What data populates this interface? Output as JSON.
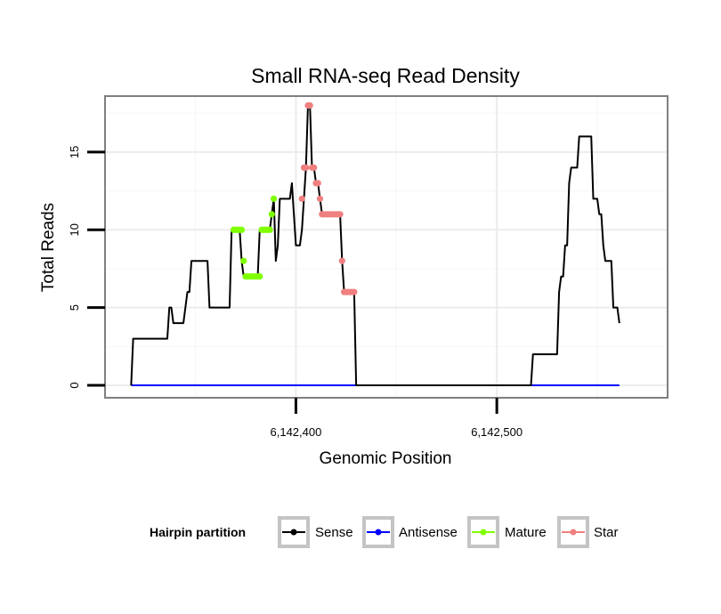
{
  "chart_data": {
    "type": "line",
    "title": "Small RNA-seq Read Density",
    "xlabel": "Genomic Position",
    "ylabel": "Total Reads",
    "xlim": [
      6142305,
      6142585
    ],
    "ylim": [
      -0.8,
      18.6
    ],
    "x_ticks": [
      {
        "value": 6142400,
        "label": "6,142,400"
      },
      {
        "value": 6142500,
        "label": "6,142,500"
      }
    ],
    "y_ticks": [
      {
        "value": 0,
        "label": "0"
      },
      {
        "value": 5,
        "label": "5"
      },
      {
        "value": 10,
        "label": "10"
      },
      {
        "value": 15,
        "label": "15"
      }
    ],
    "grid": true,
    "legend": {
      "title": "Hairpin partition",
      "position": "bottom",
      "entries": [
        {
          "name": "Sense",
          "color": "#000000"
        },
        {
          "name": "Antisense",
          "color": "#0000ff"
        },
        {
          "name": "Mature",
          "color": "#7fff00"
        },
        {
          "name": "Star",
          "color": "#f08080"
        }
      ]
    },
    "series": [
      {
        "name": "Sense",
        "color": "#000000",
        "style": "step-line",
        "points": [
          [
            6142318,
            0
          ],
          [
            6142319,
            3
          ],
          [
            6142336,
            3
          ],
          [
            6142337,
            5
          ],
          [
            6142338,
            5
          ],
          [
            6142339,
            4
          ],
          [
            6142344,
            4
          ],
          [
            6142345,
            5
          ],
          [
            6142346,
            6
          ],
          [
            6142347,
            6
          ],
          [
            6142348,
            8
          ],
          [
            6142356,
            8
          ],
          [
            6142357,
            5
          ],
          [
            6142367,
            5
          ],
          [
            6142368,
            10
          ],
          [
            6142372,
            10
          ],
          [
            6142373,
            8
          ],
          [
            6142374,
            7
          ],
          [
            6142381,
            7
          ],
          [
            6142382,
            10
          ],
          [
            6142387,
            10
          ],
          [
            6142388,
            11
          ],
          [
            6142389,
            12
          ],
          [
            6142390,
            8
          ],
          [
            6142391,
            9
          ],
          [
            6142392,
            12
          ],
          [
            6142397,
            12
          ],
          [
            6142398,
            13
          ],
          [
            6142399,
            11
          ],
          [
            6142400,
            9
          ],
          [
            6142402,
            9
          ],
          [
            6142403,
            10
          ],
          [
            6142404,
            12
          ],
          [
            6142405,
            14
          ],
          [
            6142406,
            18
          ],
          [
            6142407,
            18
          ],
          [
            6142408,
            14
          ],
          [
            6142409,
            14
          ],
          [
            6142410,
            13
          ],
          [
            6142411,
            13
          ],
          [
            6142412,
            12
          ],
          [
            6142413,
            11
          ],
          [
            6142422,
            11
          ],
          [
            6142423,
            8
          ],
          [
            6142424,
            6
          ],
          [
            6142429,
            6
          ],
          [
            6142430,
            0
          ],
          [
            6142517,
            0
          ],
          [
            6142518,
            2
          ],
          [
            6142530,
            2
          ],
          [
            6142531,
            6
          ],
          [
            6142532,
            7
          ],
          [
            6142533,
            7
          ],
          [
            6142534,
            9
          ],
          [
            6142535,
            9
          ],
          [
            6142536,
            13
          ],
          [
            6142537,
            14
          ],
          [
            6142540,
            14
          ],
          [
            6142541,
            16
          ],
          [
            6142547,
            16
          ],
          [
            6142548,
            12
          ],
          [
            6142550,
            12
          ],
          [
            6142551,
            11
          ],
          [
            6142552,
            11
          ],
          [
            6142553,
            9
          ],
          [
            6142554,
            8
          ],
          [
            6142557,
            8
          ],
          [
            6142558,
            5
          ],
          [
            6142560,
            5
          ],
          [
            6142561,
            4
          ]
        ]
      },
      {
        "name": "Antisense",
        "color": "#0000ff",
        "style": "line",
        "points": [
          [
            6142318,
            0
          ],
          [
            6142561,
            0
          ]
        ]
      },
      {
        "name": "Mature",
        "color": "#7fff00",
        "style": "points",
        "points": [
          [
            6142369,
            10
          ],
          [
            6142370,
            10
          ],
          [
            6142371,
            10
          ],
          [
            6142372,
            10
          ],
          [
            6142373,
            10
          ],
          [
            6142374,
            8
          ],
          [
            6142375,
            7
          ],
          [
            6142376,
            7
          ],
          [
            6142377,
            7
          ],
          [
            6142378,
            7
          ],
          [
            6142379,
            7
          ],
          [
            6142380,
            7
          ],
          [
            6142381,
            7
          ],
          [
            6142382,
            7
          ],
          [
            6142383,
            10
          ],
          [
            6142384,
            10
          ],
          [
            6142385,
            10
          ],
          [
            6142386,
            10
          ],
          [
            6142387,
            10
          ],
          [
            6142388,
            11
          ],
          [
            6142389,
            12
          ]
        ]
      },
      {
        "name": "Star",
        "color": "#f08080",
        "style": "points",
        "points": [
          [
            6142403,
            12
          ],
          [
            6142404,
            14
          ],
          [
            6142405,
            14
          ],
          [
            6142406,
            18
          ],
          [
            6142407,
            18
          ],
          [
            6142408,
            14
          ],
          [
            6142409,
            14
          ],
          [
            6142410,
            13
          ],
          [
            6142411,
            13
          ],
          [
            6142412,
            12
          ],
          [
            6142413,
            11
          ],
          [
            6142414,
            11
          ],
          [
            6142415,
            11
          ],
          [
            6142416,
            11
          ],
          [
            6142417,
            11
          ],
          [
            6142418,
            11
          ],
          [
            6142419,
            11
          ],
          [
            6142420,
            11
          ],
          [
            6142421,
            11
          ],
          [
            6142422,
            11
          ],
          [
            6142423,
            8
          ],
          [
            6142424,
            6
          ],
          [
            6142425,
            6
          ],
          [
            6142426,
            6
          ],
          [
            6142427,
            6
          ],
          [
            6142428,
            6
          ],
          [
            6142429,
            6
          ]
        ]
      }
    ]
  }
}
